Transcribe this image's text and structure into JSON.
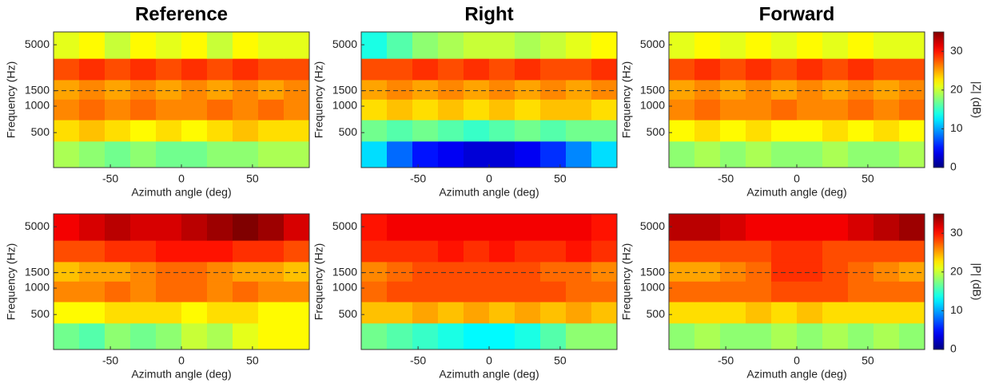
{
  "chart_data": [
    {
      "type": "heatmap",
      "title": "Reference",
      "xlabel": "Azimuth angle (deg)",
      "ylabel": "Frequency (Hz)",
      "xlim": [
        -90,
        90
      ],
      "xticks": [
        -50,
        0,
        50
      ],
      "ylim": [
        200,
        7000
      ],
      "ylog": true,
      "yticks": [
        500,
        1000,
        1500,
        5000
      ],
      "hline": 1500,
      "colormap": "jet",
      "clim": [
        0,
        35
      ],
      "xbins": [
        -90,
        -72,
        -54,
        -36,
        -18,
        0,
        18,
        36,
        54,
        72,
        90
      ],
      "ybins": [
        200,
        400,
        700,
        1200,
        2000,
        3500,
        7000
      ],
      "z": [
        [
          19,
          18,
          17,
          18,
          17,
          17,
          18,
          18,
          19,
          19
        ],
        [
          23,
          24,
          23,
          22,
          23,
          22,
          23,
          24,
          23,
          23
        ],
        [
          26,
          27,
          26,
          27,
          26,
          26,
          27,
          26,
          27,
          26
        ],
        [
          25,
          26,
          25,
          26,
          25,
          26,
          25,
          26,
          25,
          26
        ],
        [
          28,
          29,
          28,
          29,
          28,
          29,
          28,
          29,
          28,
          28
        ],
        [
          21,
          22,
          20,
          22,
          21,
          22,
          20,
          22,
          21,
          21
        ]
      ]
    },
    {
      "type": "heatmap",
      "title": "Right",
      "xlabel": "Azimuth angle (deg)",
      "ylabel": "Frequency (Hz)",
      "xlim": [
        -90,
        90
      ],
      "xticks": [
        -50,
        0,
        50
      ],
      "ylim": [
        200,
        7000
      ],
      "ylog": true,
      "yticks": [
        500,
        1000,
        1500,
        5000
      ],
      "hline": 1500,
      "colormap": "jet",
      "clim": [
        0,
        35
      ],
      "xbins": [
        -90,
        -72,
        -54,
        -36,
        -18,
        0,
        18,
        36,
        54,
        72,
        90
      ],
      "ybins": [
        200,
        400,
        700,
        1200,
        2000,
        3500,
        7000
      ],
      "z": [
        [
          12,
          8,
          5,
          4,
          3,
          3,
          4,
          6,
          9,
          12
        ],
        [
          17,
          16,
          17,
          16,
          15,
          16,
          17,
          16,
          17,
          17
        ],
        [
          23,
          24,
          23,
          24,
          23,
          24,
          23,
          24,
          24,
          23
        ],
        [
          25,
          26,
          25,
          26,
          25,
          26,
          25,
          26,
          25,
          26
        ],
        [
          28,
          28,
          29,
          28,
          29,
          28,
          29,
          28,
          28,
          29
        ],
        [
          14,
          16,
          18,
          19,
          20,
          20,
          19,
          20,
          21,
          22
        ]
      ]
    },
    {
      "type": "heatmap",
      "title": "Forward",
      "xlabel": "Azimuth angle (deg)",
      "ylabel": "Frequency (Hz)",
      "xlim": [
        -90,
        90
      ],
      "xticks": [
        -50,
        0,
        50
      ],
      "ylim": [
        200,
        7000
      ],
      "ylog": true,
      "yticks": [
        500,
        1000,
        1500,
        5000
      ],
      "hline": 1500,
      "colormap": "jet",
      "clim": [
        0,
        35
      ],
      "xbins": [
        -90,
        -72,
        -54,
        -36,
        -18,
        0,
        18,
        36,
        54,
        72,
        90
      ],
      "ybins": [
        200,
        400,
        700,
        1200,
        2000,
        3500,
        7000
      ],
      "z": [
        [
          18,
          19,
          18,
          19,
          18,
          18,
          19,
          18,
          18,
          19
        ],
        [
          22,
          23,
          22,
          23,
          22,
          22,
          23,
          22,
          23,
          22
        ],
        [
          26,
          27,
          26,
          26,
          27,
          26,
          26,
          27,
          26,
          27
        ],
        [
          25,
          26,
          25,
          26,
          25,
          26,
          25,
          26,
          25,
          26
        ],
        [
          28,
          29,
          28,
          29,
          28,
          29,
          28,
          29,
          28,
          28
        ],
        [
          21,
          22,
          21,
          22,
          21,
          22,
          21,
          22,
          21,
          21
        ]
      ],
      "colorbar": {
        "label": "|Z| (dB)",
        "ticks": [
          0,
          10,
          20,
          30
        ]
      }
    },
    {
      "type": "heatmap",
      "xlabel": "Azimuth angle (deg)",
      "ylabel": "Frequency (Hz)",
      "xlim": [
        -90,
        90
      ],
      "xticks": [
        -50,
        0,
        50
      ],
      "ylim": [
        200,
        7000
      ],
      "ylog": true,
      "yticks": [
        500,
        1000,
        1500,
        5000
      ],
      "hline": 1500,
      "colormap": "jet",
      "clim": [
        0,
        35
      ],
      "xbins": [
        -90,
        -72,
        -54,
        -36,
        -18,
        0,
        18,
        36,
        54,
        72,
        90
      ],
      "ybins": [
        200,
        400,
        700,
        1200,
        2000,
        3500,
        7000
      ],
      "z": [
        [
          17,
          16,
          18,
          17,
          18,
          20,
          19,
          21,
          22,
          22
        ],
        [
          22,
          22,
          23,
          23,
          23,
          22,
          23,
          23,
          22,
          22
        ],
        [
          26,
          26,
          27,
          26,
          27,
          27,
          26,
          27,
          26,
          26
        ],
        [
          24,
          25,
          25,
          26,
          27,
          27,
          26,
          25,
          25,
          24
        ],
        [
          28,
          28,
          29,
          29,
          30,
          30,
          30,
          29,
          29,
          28
        ],
        [
          31,
          32,
          33,
          32,
          32,
          33,
          34,
          35,
          34,
          32
        ]
      ]
    },
    {
      "type": "heatmap",
      "xlabel": "Azimuth angle (deg)",
      "ylabel": "Frequency (Hz)",
      "xlim": [
        -90,
        90
      ],
      "xticks": [
        -50,
        0,
        50
      ],
      "ylim": [
        200,
        7000
      ],
      "ylog": true,
      "yticks": [
        500,
        1000,
        1500,
        5000
      ],
      "hline": 1500,
      "colormap": "jet",
      "clim": [
        0,
        35
      ],
      "xbins": [
        -90,
        -72,
        -54,
        -36,
        -18,
        0,
        18,
        36,
        54,
        72,
        90
      ],
      "ybins": [
        200,
        400,
        700,
        1200,
        2000,
        3500,
        7000
      ],
      "z": [
        [
          17,
          16,
          15,
          14,
          13,
          13,
          14,
          16,
          18,
          18
        ],
        [
          24,
          24,
          25,
          24,
          25,
          24,
          25,
          24,
          25,
          24
        ],
        [
          27,
          28,
          28,
          28,
          28,
          28,
          28,
          28,
          27,
          27
        ],
        [
          26,
          27,
          28,
          28,
          28,
          28,
          28,
          27,
          27,
          26
        ],
        [
          29,
          29,
          29,
          30,
          29,
          30,
          29,
          29,
          30,
          29
        ],
        [
          30,
          31,
          31,
          31,
          31,
          31,
          31,
          31,
          31,
          30
        ]
      ]
    },
    {
      "type": "heatmap",
      "xlabel": "Azimuth angle (deg)",
      "ylabel": "Frequency (Hz)",
      "xlim": [
        -90,
        90
      ],
      "xticks": [
        -50,
        0,
        50
      ],
      "ylim": [
        200,
        7000
      ],
      "ylog": true,
      "yticks": [
        500,
        1000,
        1500,
        5000
      ],
      "hline": 1500,
      "colormap": "jet",
      "clim": [
        0,
        35
      ],
      "xbins": [
        -90,
        -72,
        -54,
        -36,
        -18,
        0,
        18,
        36,
        54,
        72,
        90
      ],
      "ybins": [
        200,
        400,
        700,
        1200,
        2000,
        3500,
        7000
      ],
      "z": [
        [
          18,
          19,
          18,
          18,
          19,
          18,
          19,
          18,
          19,
          18
        ],
        [
          23,
          23,
          23,
          24,
          23,
          24,
          23,
          23,
          23,
          23
        ],
        [
          27,
          27,
          27,
          27,
          28,
          28,
          28,
          27,
          27,
          27
        ],
        [
          25,
          25,
          26,
          27,
          29,
          29,
          28,
          27,
          26,
          25
        ],
        [
          28,
          28,
          28,
          28,
          29,
          29,
          28,
          28,
          28,
          28
        ],
        [
          33,
          33,
          32,
          31,
          31,
          31,
          31,
          32,
          33,
          34
        ]
      ],
      "colorbar": {
        "label": "|P| (dB)",
        "ticks": [
          0,
          10,
          20,
          30
        ]
      }
    }
  ]
}
